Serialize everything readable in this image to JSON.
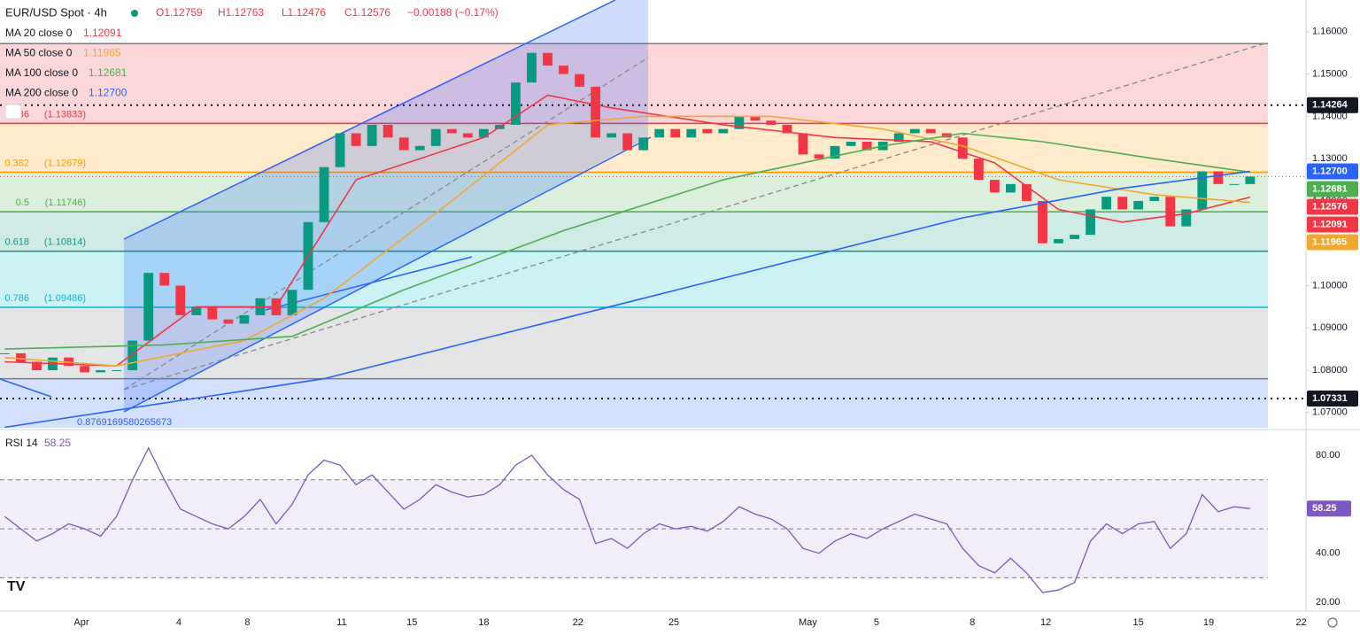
{
  "header": {
    "symbol": "EUR/USD Spot · 4h",
    "open": "O1.12759",
    "high": "H1.12763",
    "low": "L1.12476",
    "close": "C1.12576",
    "change": "−0.00188 (−0.17%)"
  },
  "chart_data": {
    "type": "candlestick",
    "closes": [
      1.084,
      1.082,
      1.08,
      1.083,
      1.081,
      1.0795,
      1.08,
      1.08,
      1.087,
      1.103,
      1.1,
      1.093,
      1.095,
      1.092,
      1.091,
      1.093,
      1.097,
      1.093,
      1.099,
      1.115,
      1.128,
      1.136,
      1.133,
      1.138,
      1.135,
      1.132,
      1.133,
      1.137,
      1.136,
      1.135,
      1.137,
      1.138,
      1.148,
      1.155,
      1.152,
      1.15,
      1.147,
      1.135,
      1.136,
      1.132,
      1.135,
      1.137,
      1.135,
      1.137,
      1.136,
      1.137,
      1.14,
      1.139,
      1.138,
      1.136,
      1.131,
      1.13,
      1.133,
      1.134,
      1.132,
      1.134,
      1.136,
      1.137,
      1.136,
      1.135,
      1.13,
      1.125,
      1.122,
      1.124,
      1.12,
      1.11,
      1.111,
      1.112,
      1.118,
      1.121,
      1.118,
      1.12,
      1.121,
      1.114,
      1.118,
      1.127,
      1.124,
      1.124,
      1.12576
    ],
    "up_color": "#089981",
    "down_color": "#f23645",
    "xlim": [
      -0.3,
      81.5
    ],
    "ylim": [
      1.0664,
      1.1675
    ],
    "xticks": [
      {
        "value": 4.8,
        "label": "Apr"
      },
      {
        "value": 10.9,
        "label": "4"
      },
      {
        "value": 15.2,
        "label": "8"
      },
      {
        "value": 21.1,
        "label": "11"
      },
      {
        "value": 25.5,
        "label": "15"
      },
      {
        "value": 30,
        "label": "18"
      },
      {
        "value": 35.9,
        "label": "22"
      },
      {
        "value": 41.9,
        "label": "25"
      },
      {
        "value": 50.3,
        "label": "May"
      },
      {
        "value": 54.6,
        "label": "5"
      },
      {
        "value": 60.6,
        "label": "8"
      },
      {
        "value": 65.2,
        "label": "12"
      },
      {
        "value": 71,
        "label": "15"
      },
      {
        "value": 75.4,
        "label": "19"
      },
      {
        "value": 81.2,
        "label": "22"
      }
    ],
    "yticks": [
      {
        "value": 1.16,
        "label": "1.16000"
      },
      {
        "value": 1.15,
        "label": "1.15000"
      },
      {
        "value": 1.14,
        "label": "1.14000"
      },
      {
        "value": 1.13,
        "label": "1.13000"
      },
      {
        "value": 1.12,
        "label": "1.12000"
      },
      {
        "value": 1.11,
        "label": "1.11000"
      },
      {
        "value": 1.1,
        "label": "1.10000"
      },
      {
        "value": 1.09,
        "label": "1.09000"
      },
      {
        "value": 1.08,
        "label": "1.08000"
      },
      {
        "value": 1.07,
        "label": "1.07000"
      }
    ],
    "ma": [
      {
        "name": "MA 20 close 0",
        "value_label": "1.12091",
        "color": "#f23645",
        "x": [
          0,
          7,
          12,
          17,
          22,
          30,
          34,
          38,
          45,
          52,
          58,
          62,
          66,
          70,
          74,
          78
        ],
        "values": [
          1.082,
          1.081,
          1.095,
          1.095,
          1.125,
          1.135,
          1.145,
          1.142,
          1.138,
          1.135,
          1.134,
          1.129,
          1.118,
          1.115,
          1.117,
          1.12091
        ]
      },
      {
        "name": "MA 50 close 0",
        "value_label": "1.11965",
        "color": "#f0a830",
        "x": [
          0,
          7,
          15,
          20,
          28,
          34,
          40,
          48,
          55,
          60,
          66,
          72,
          78
        ],
        "values": [
          1.083,
          1.081,
          1.087,
          1.097,
          1.12,
          1.138,
          1.14,
          1.14,
          1.137,
          1.133,
          1.125,
          1.1215,
          1.11965
        ]
      },
      {
        "name": "MA 100 close 0",
        "value_label": "1.12681",
        "color": "#4caf50",
        "x": [
          0,
          10,
          18,
          25,
          35,
          45,
          55,
          60,
          65,
          72,
          78
        ],
        "values": [
          1.085,
          1.086,
          1.088,
          1.099,
          1.113,
          1.125,
          1.133,
          1.136,
          1.134,
          1.13,
          1.12681
        ]
      },
      {
        "name": "MA 200 close 0",
        "value_label": "1.12700",
        "color": "#2962ff",
        "x": [
          0,
          20,
          40,
          60,
          70,
          78
        ],
        "values": [
          1.0665,
          1.078,
          1.097,
          1.116,
          1.123,
          1.127
        ]
      }
    ],
    "price_lines": [
      {
        "value": 1.14264,
        "label": "1.14264"
      },
      {
        "value": 1.07331,
        "label": "1.07331"
      }
    ],
    "last_price": {
      "value": 1.12576,
      "label": "1.12576",
      "color": "#f23645"
    },
    "fib": {
      "levels": [
        {
          "price": 1.1572,
          "color": "#787b86"
        },
        {
          "ratio": "36",
          "label": "(1.13833)",
          "price": 1.13833,
          "color": "#f23645"
        },
        {
          "ratio": "0.382",
          "label": "(1.12679)",
          "price": 1.12679,
          "color": "#ff9800"
        },
        {
          "ratio": "0.5",
          "label": "(1.11746)",
          "price": 1.11746,
          "color": "#4caf50"
        },
        {
          "ratio": "0.618",
          "label": "(1.10814)",
          "price": 1.10814,
          "color": "#089981"
        },
        {
          "ratio": "0.786",
          "label": "(1.09486)",
          "price": 1.09486,
          "color": "#00bcd4"
        },
        {
          "price": 1.078,
          "color": "#787b86"
        }
      ],
      "zone_colors": [
        "rgba(242,54,69,0.2)",
        "rgba(255,152,0,0.2)",
        "rgba(76,175,80,0.2)",
        "rgba(8,153,129,0.2)",
        "rgba(0,188,212,0.2)",
        "rgba(120,123,134,0.2)",
        "rgba(41,98,255,0.2)"
      ],
      "extra_label": "0.8769169580265673"
    },
    "rsi": {
      "name": "RSI 14",
      "value_label": "58.25",
      "color": "#7e57c2",
      "ylim": [
        16.4,
        89.8
      ],
      "band": [
        30,
        70
      ],
      "mid": 50,
      "yticks": [
        {
          "value": 80,
          "label": "80.00"
        },
        {
          "value": 40,
          "label": "40.00"
        },
        {
          "value": 20,
          "label": "20.00"
        }
      ],
      "values": [
        55,
        50,
        45,
        48,
        52,
        50,
        47,
        55,
        70,
        83,
        70,
        58,
        55,
        52,
        50,
        55,
        62,
        52,
        60,
        72,
        78,
        76,
        68,
        72,
        65,
        58,
        62,
        68,
        65,
        63,
        64,
        68,
        76,
        80,
        72,
        66,
        62,
        44,
        46,
        42,
        48,
        52,
        50,
        51,
        49,
        53,
        59,
        56,
        54,
        50,
        42,
        40,
        45,
        48,
        46,
        50,
        53,
        56,
        54,
        52,
        42,
        35,
        32,
        38,
        32,
        24,
        25,
        28,
        45,
        52,
        48,
        52,
        53,
        42,
        48,
        64,
        57,
        59,
        58.25
      ]
    }
  }
}
